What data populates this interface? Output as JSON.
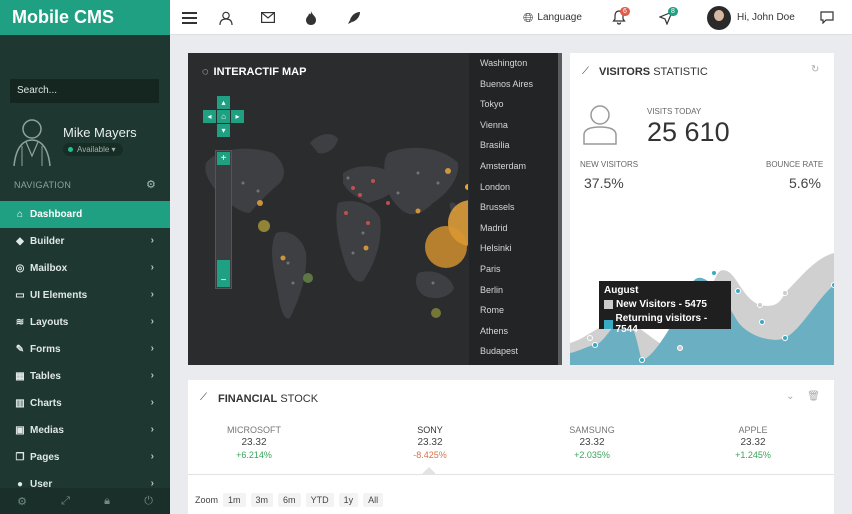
{
  "app": {
    "title": "Mobile CMS"
  },
  "sidebar": {
    "search_placeholder": "Search...",
    "profile": {
      "name": "Mike Mayers",
      "status": "Available"
    },
    "nav_heading": "NAVIGATION",
    "items": [
      {
        "label": "Dashboard",
        "icon": "home-icon"
      },
      {
        "label": "Builder",
        "icon": "tag-icon"
      },
      {
        "label": "Mailbox",
        "icon": "pin-icon"
      },
      {
        "label": "UI Elements",
        "icon": "monitor-icon"
      },
      {
        "label": "Layouts",
        "icon": "layers-icon"
      },
      {
        "label": "Forms",
        "icon": "edit-icon"
      },
      {
        "label": "Tables",
        "icon": "table-icon"
      },
      {
        "label": "Charts",
        "icon": "bar-chart-icon"
      },
      {
        "label": "Medias",
        "icon": "image-icon"
      },
      {
        "label": "Pages",
        "icon": "copy-icon"
      },
      {
        "label": "User",
        "icon": "user-icon"
      }
    ]
  },
  "topbar": {
    "language": "Language",
    "notifications_count": "6",
    "messages_count": "8",
    "greeting": "Hi, John Doe"
  },
  "map_panel": {
    "title": "INTERACTIF MAP",
    "cities": [
      "Washington",
      "Buenos Aires",
      "Tokyo",
      "Vienna",
      "Brasilia",
      "Amsterdam",
      "London",
      "Brussels",
      "Madrid",
      "Helsinki",
      "Paris",
      "Berlin",
      "Rome",
      "Athens",
      "Budapest"
    ]
  },
  "visitors_panel": {
    "title_bold": "VISITORS",
    "title_light": " STATISTIC",
    "visits_today_label": "VISITS TODAY",
    "visits_today": "25 610",
    "new_visitors_label": "NEW VISITORS",
    "new_visitors": "37.5%",
    "bounce_rate_label": "BOUNCE RATE",
    "bounce_rate": "5.6%",
    "tooltip": {
      "title": "August",
      "new_label": "New Visitors - 5475",
      "returning_label": "Returning visitors - 7544"
    },
    "colors": {
      "new": "#cccccc",
      "returning": "#3aa9c4"
    }
  },
  "financial_panel": {
    "title_bold": "FINANCIAL",
    "title_light": " STOCK",
    "stocks": [
      {
        "name": "MICROSOFT",
        "price": "23.32",
        "change": "+6.214%",
        "positive": true
      },
      {
        "name": "SONY",
        "price": "23.32",
        "change": "-8.425%",
        "positive": false
      },
      {
        "name": "SAMSUNG",
        "price": "23.32",
        "change": "+2.035%",
        "positive": true
      },
      {
        "name": "APPLE",
        "price": "23.32",
        "change": "+1.245%",
        "positive": true
      }
    ],
    "zoom_label": "Zoom",
    "zoom_options": [
      "1m",
      "3m",
      "6m",
      "YTD",
      "1y",
      "All"
    ]
  }
}
